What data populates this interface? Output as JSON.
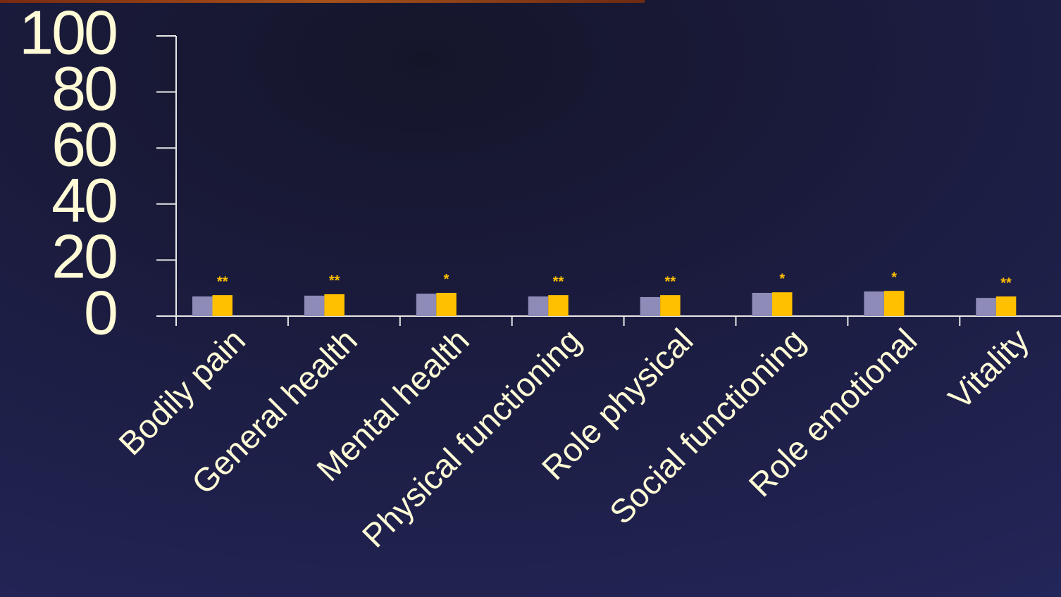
{
  "chart_data": {
    "type": "bar",
    "categories": [
      "Bodily pain",
      "General health",
      "Mental health",
      "Physical functioning",
      "Role physical",
      "Social functioning",
      "Role emotional",
      "Vitality"
    ],
    "series": [
      {
        "color": "#8e8bb8",
        "values": [
          7.0,
          7.3,
          8.0,
          7.0,
          6.8,
          8.3,
          8.8,
          6.5
        ]
      },
      {
        "color": "#ffc000",
        "values": [
          7.5,
          7.8,
          8.3,
          7.5,
          7.5,
          8.5,
          9.0,
          7.0
        ]
      }
    ],
    "annotations": [
      "**",
      "**",
      "*",
      "**",
      "**",
      "*",
      "*",
      "**"
    ],
    "ylim": [
      0,
      100
    ],
    "yticks": [
      0,
      20,
      40,
      60,
      80,
      100
    ]
  }
}
